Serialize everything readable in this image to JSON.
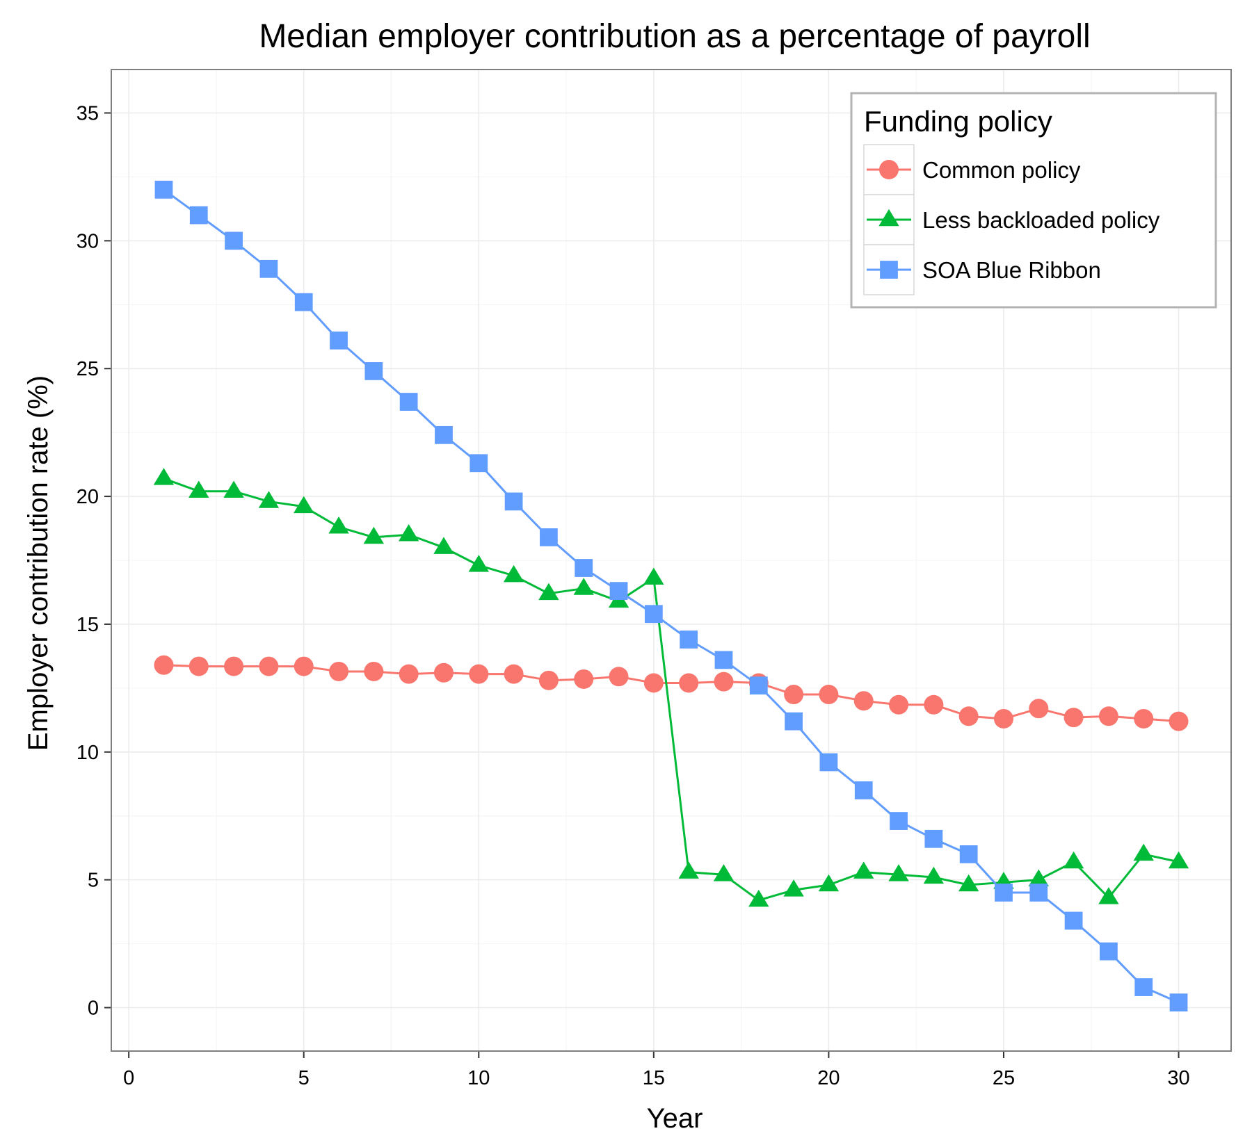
{
  "chart_data": {
    "type": "line",
    "title": "Median employer contribution as a percentage of payroll",
    "xlabel": "Year",
    "ylabel": "Employer contribution rate (%)",
    "xlim": [
      -0.5,
      31.5
    ],
    "ylim": [
      -1.7,
      36.7
    ],
    "xticks": [
      0,
      5,
      10,
      15,
      20,
      25,
      30
    ],
    "yticks": [
      0,
      5,
      10,
      15,
      20,
      25,
      30,
      35
    ],
    "grid": true,
    "legend": {
      "title": "Funding policy",
      "position": "top-right"
    },
    "x": [
      1,
      2,
      3,
      4,
      5,
      6,
      7,
      8,
      9,
      10,
      11,
      12,
      13,
      14,
      15,
      16,
      17,
      18,
      19,
      20,
      21,
      22,
      23,
      24,
      25,
      26,
      27,
      28,
      29,
      30
    ],
    "series": [
      {
        "name": "Common policy",
        "color": "#F8766D",
        "marker": "circle",
        "values": [
          13.4,
          13.35,
          13.35,
          13.35,
          13.35,
          13.15,
          13.15,
          13.05,
          13.1,
          13.05,
          13.05,
          12.8,
          12.85,
          12.95,
          12.7,
          12.7,
          12.75,
          12.7,
          12.25,
          12.25,
          12.0,
          11.85,
          11.85,
          11.4,
          11.3,
          11.7,
          11.35,
          11.4,
          11.3,
          11.2
        ]
      },
      {
        "name": "Less backloaded policy",
        "color": "#00BA38",
        "marker": "triangle",
        "values": [
          20.7,
          20.2,
          20.2,
          19.8,
          19.6,
          18.8,
          18.4,
          18.5,
          18.0,
          17.3,
          16.9,
          16.2,
          16.4,
          15.9,
          16.8,
          5.3,
          5.2,
          4.2,
          4.6,
          4.8,
          5.3,
          5.2,
          5.1,
          4.8,
          4.9,
          5.0,
          5.7,
          4.3,
          6.0,
          5.7
        ]
      },
      {
        "name": "SOA Blue Ribbon",
        "color": "#619CFF",
        "marker": "square",
        "values": [
          32.0,
          31.0,
          30.0,
          28.9,
          27.6,
          26.1,
          24.9,
          23.7,
          22.4,
          21.3,
          19.8,
          18.4,
          17.2,
          16.3,
          15.4,
          14.4,
          13.6,
          12.6,
          11.2,
          9.6,
          8.5,
          7.3,
          6.6,
          6.0,
          4.5,
          4.5,
          3.4,
          2.2,
          0.8,
          0.2
        ]
      }
    ]
  }
}
